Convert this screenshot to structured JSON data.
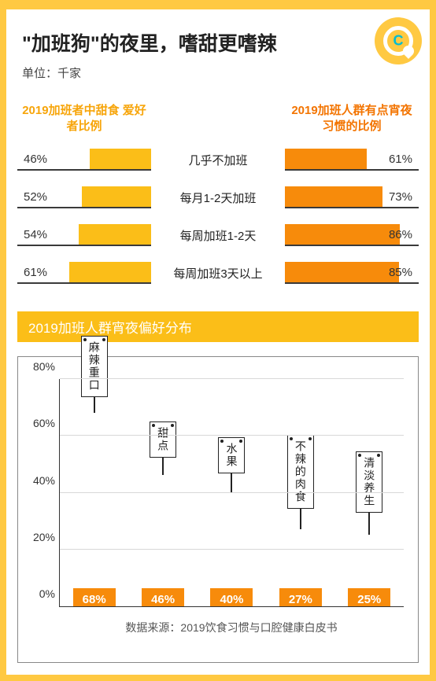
{
  "header": {
    "title": "\"加班狗\"的夜里，嗜甜更嗜辣",
    "unit_label": "单位：千家"
  },
  "logo": {
    "letter": "C"
  },
  "pair_chart": {
    "left_header": "2019加班者中甜食\n爱好者比例",
    "right_header": "2019加班人群有点宵夜\n习惯的比例",
    "left_color": "#fbbe18",
    "right_color": "#f78b0b",
    "left_max": 100,
    "right_max": 100,
    "rows": [
      {
        "left_val": 46,
        "left_label": "46%",
        "center": "几乎不加班",
        "right_val": 61,
        "right_label": "61%"
      },
      {
        "left_val": 52,
        "left_label": "52%",
        "center": "每月1-2天加班",
        "right_val": 73,
        "right_label": "73%"
      },
      {
        "left_val": 54,
        "left_label": "54%",
        "center": "每周加班1-2天",
        "right_val": 86,
        "right_label": "86%"
      },
      {
        "left_val": 61,
        "left_label": "61%",
        "center": "每周加班3天以上",
        "right_val": 85,
        "right_label": "85%"
      }
    ]
  },
  "section_title": "2019加班人群宵夜偏好分布",
  "bar_chart": {
    "ymax": 80,
    "ystep": 20,
    "yticks": [
      "0%",
      "20%",
      "40%",
      "60%",
      "80%"
    ],
    "bar_color": "#f78b0b",
    "bars": [
      {
        "name": "麻辣重口",
        "value": 68,
        "label": "68%"
      },
      {
        "name": "甜点",
        "value": 46,
        "label": "46%"
      },
      {
        "name": "水果",
        "value": 40,
        "label": "40%"
      },
      {
        "name": "不辣的肉食",
        "value": 27,
        "label": "27%"
      },
      {
        "name": "清淡养生",
        "value": 25,
        "label": "25%"
      }
    ]
  },
  "source": "数据来源：2019饮食习惯与口腔健康白皮书",
  "colors": {
    "frame": "#ffc942",
    "text_dark": "#222222",
    "grid": "#d8d8d8"
  }
}
